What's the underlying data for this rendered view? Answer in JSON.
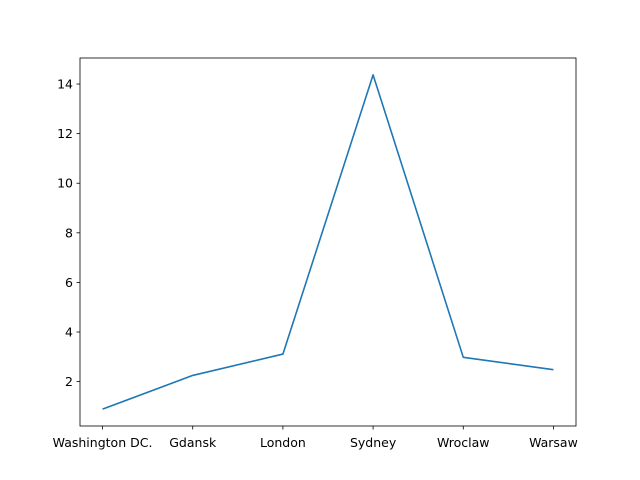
{
  "chart_data": {
    "type": "line",
    "title": "",
    "xlabel": "",
    "ylabel": "",
    "categories": [
      "Washington DC.",
      "Gdansk",
      "London",
      "Sydney",
      "Wroclaw",
      "Warsaw"
    ],
    "values": [
      0.89,
      2.25,
      3.11,
      14.37,
      2.98,
      2.48
    ],
    "ylim": [
      0.21,
      15.05
    ],
    "yticks": [
      2,
      4,
      6,
      8,
      10,
      12,
      14
    ],
    "grid": false,
    "legend": "none",
    "line_color": "#1f77b4"
  }
}
